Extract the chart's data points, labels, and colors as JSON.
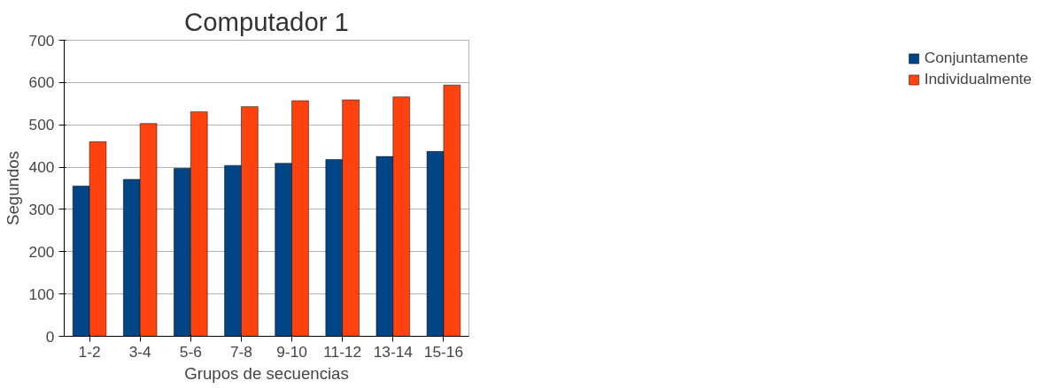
{
  "chart_data": {
    "type": "bar",
    "title": "Computador 1",
    "xlabel": "Grupos de secuencias",
    "ylabel": "Segundos",
    "categories": [
      "1-2",
      "3-4",
      "5-6",
      "7-8",
      "9-10",
      "11-12",
      "13-14",
      "15-16"
    ],
    "series": [
      {
        "name": "Conjuntamente",
        "color": "#004586",
        "values": [
          355,
          371,
          397,
          404,
          409,
          418,
          425,
          437
        ]
      },
      {
        "name": "Individualmente",
        "color": "#ff420e",
        "values": [
          460,
          503,
          531,
          543,
          557,
          559,
          566,
          594
        ]
      }
    ],
    "ylim": [
      0,
      700
    ],
    "yticks": [
      0,
      100,
      200,
      300,
      400,
      500,
      600,
      700
    ],
    "grid": "y",
    "legend": "right"
  }
}
